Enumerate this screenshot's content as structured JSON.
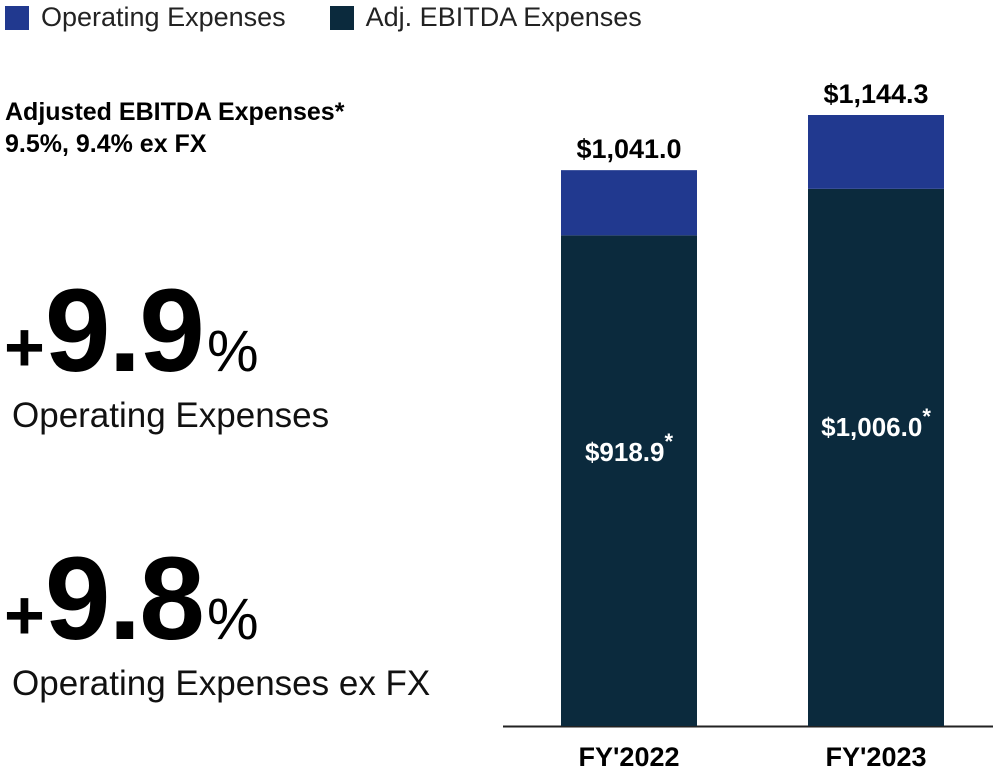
{
  "legend": [
    {
      "label": "Operating Expenses",
      "color": "#21398f"
    },
    {
      "label": "Adj. EBITDA Expenses",
      "color": "#0b2a3d"
    }
  ],
  "subtitle": {
    "title": "Adjusted EBITDA Expenses*",
    "detail": "9.5%, 9.4% ex FX"
  },
  "metrics": [
    {
      "plus": "+",
      "value": "9.9",
      "pct": "%",
      "label": "Operating Expenses"
    },
    {
      "plus": "+",
      "value": "9.8",
      "pct": "%",
      "label": "Operating Expenses ex FX"
    }
  ],
  "chart_data": {
    "type": "bar",
    "stacked": true,
    "categories": [
      "FY'2022",
      "FY'2023"
    ],
    "totals": [
      1041.0,
      1144.3
    ],
    "total_labels": [
      "$1,041.0",
      "$1,144.3"
    ],
    "series": [
      {
        "name": "Adj. EBITDA Expenses",
        "values": [
          918.9,
          1006.0
        ],
        "labels": [
          "$918.9",
          "$1,006.0"
        ],
        "label_suffix": "*",
        "color": "#0b2a3d"
      },
      {
        "name": "Operating Expenses",
        "values": [
          122.1,
          138.3
        ],
        "color": "#21398f"
      }
    ],
    "ylim": [
      0,
      1144.3
    ],
    "grid": false
  }
}
